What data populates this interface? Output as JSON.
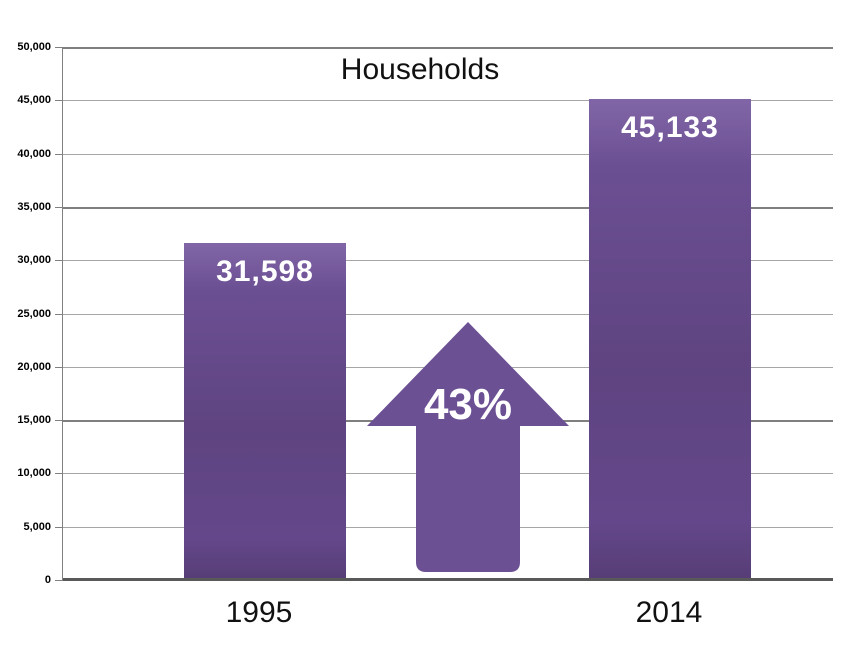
{
  "chart_data": {
    "type": "bar",
    "title": "Households",
    "categories": [
      "1995",
      "2014"
    ],
    "values": [
      31598,
      45133
    ],
    "value_labels": [
      "31,598",
      "45,133"
    ],
    "annotation": {
      "text": "43%",
      "shape": "up-arrow"
    },
    "ylabel": "",
    "xlabel": "",
    "ylim": [
      0,
      50000
    ],
    "ytick_step": 5000,
    "ytick_labels": [
      "50,000",
      "45,000",
      "40,000",
      "35,000",
      "30,000",
      "25,000",
      "20,000",
      "15,000",
      "10,000",
      "5,000",
      "0"
    ],
    "emphasized_gridlines": [
      50000,
      35000,
      15000
    ],
    "grid": true,
    "legend": "none",
    "colors": {
      "bar_top": "#8166a7",
      "bar_mid": "#5f4481",
      "bar_bottom": "#573d76",
      "arrow": "#6b5094",
      "gridline": "#a6a6a6",
      "gridline_emphasis": "#7f7f7f",
      "axis": "#595959",
      "value_text": "#ffffff",
      "text": "#111111"
    }
  }
}
